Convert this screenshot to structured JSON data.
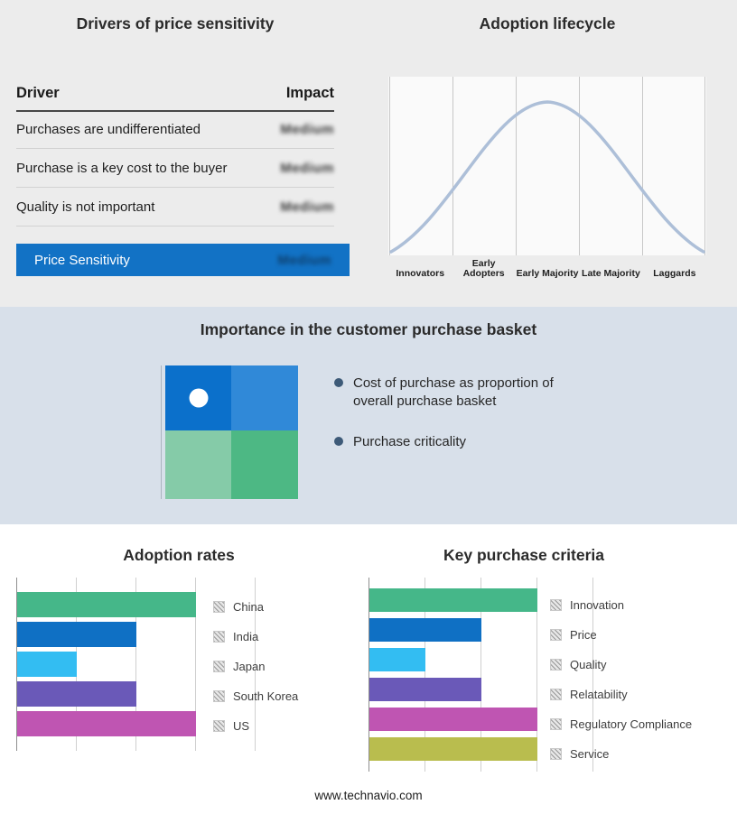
{
  "theme": {
    "top_band_bg": "#ececec",
    "mid_band_bg": "#d8e0ea",
    "accent_blue": "#1272c5",
    "curve_color": "#adbfd8"
  },
  "drivers_panel": {
    "title": "Drivers of price sensitivity",
    "columns": {
      "driver": "Driver",
      "impact": "Impact"
    },
    "rows": [
      {
        "driver": "Purchases are undifferentiated",
        "impact": "Medium",
        "impact_blurred": true
      },
      {
        "driver": "Purchase is a key cost to the buyer",
        "impact": "Medium",
        "impact_blurred": true
      },
      {
        "driver": "Quality is not important",
        "impact": "Medium",
        "impact_blurred": true
      }
    ],
    "summary_row": {
      "label": "Price Sensitivity",
      "impact": "Medium",
      "impact_blurred": true
    }
  },
  "basket_panel": {
    "title": "Importance in the customer purchase basket",
    "matrix_colors": [
      "#0b70cb",
      "#3089d8",
      "#85cba8",
      "#4db884"
    ],
    "bullets": [
      "Cost of purchase as proportion of overall purchase basket",
      "Purchase criticality"
    ]
  },
  "footer": {
    "site": "www.technavio.com"
  },
  "chart_data": [
    {
      "type": "bar",
      "orientation": "horizontal",
      "title": "Adoption rates",
      "categories": [
        "China",
        "India",
        "Japan",
        "South Korea",
        "US"
      ],
      "values": [
        3,
        2,
        1,
        2,
        3
      ],
      "colors": [
        "#45b789",
        "#0f70c4",
        "#33bdf2",
        "#6a59b8",
        "#bf55b2"
      ],
      "xlim": [
        0,
        4
      ],
      "grid": true,
      "legend_position": "right",
      "value_labels_shown": false
    },
    {
      "type": "bar",
      "orientation": "horizontal",
      "title": "Key purchase criteria",
      "categories": [
        "Innovation",
        "Price",
        "Quality",
        "Relatability",
        "Regulatory Compliance",
        "Service"
      ],
      "values": [
        3,
        2,
        1,
        2,
        3,
        3
      ],
      "colors": [
        "#45b789",
        "#0f70c4",
        "#33bdf2",
        "#6a59b8",
        "#bf55b2",
        "#b9bd4e"
      ],
      "xlim": [
        0,
        4
      ],
      "grid": true,
      "legend_position": "right",
      "value_labels_shown": false
    },
    {
      "type": "line",
      "title": "Adoption lifecycle",
      "x": [
        "Innovators",
        "Early Adopters",
        "Early Majority",
        "Late Majority",
        "Laggards"
      ],
      "values": [
        0.05,
        0.5,
        1.0,
        0.5,
        0.05
      ],
      "ylim": [
        0,
        1
      ],
      "grid": true,
      "shape": "bell-curve"
    }
  ]
}
